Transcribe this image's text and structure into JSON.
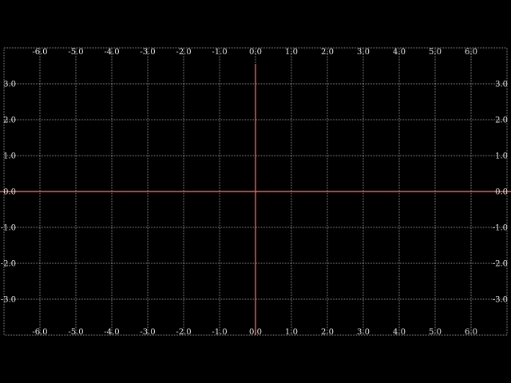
{
  "chart_data": {
    "type": "line",
    "title": "",
    "xlabel": "",
    "ylabel": "",
    "xlim": [
      -7.0,
      7.0
    ],
    "ylim": [
      -4.0,
      4.0
    ],
    "x_ticks": [
      "-6.0",
      "-5.0",
      "-4.0",
      "-3.0",
      "-2.0",
      "-1.0",
      "0.0",
      "1.0",
      "2.0",
      "3.0",
      "4.0",
      "5.0",
      "6.0"
    ],
    "x_tick_values": [
      -6,
      -5,
      -4,
      -3,
      -2,
      -1,
      0,
      1,
      2,
      3,
      4,
      5,
      6
    ],
    "y_ticks": [
      "3.0",
      "2.0",
      "1.0",
      "0.0",
      "-1.0",
      "-2.0",
      "-3.0"
    ],
    "y_tick_values": [
      3,
      2,
      1,
      0,
      -1,
      -2,
      -3
    ],
    "x_tick_positions": [
      "top",
      "bottom"
    ],
    "y_tick_positions": [
      "left",
      "right"
    ],
    "grid": true,
    "grid_style": "dotted",
    "axes_lines": [
      {
        "orientation": "horizontal",
        "at": 0
      },
      {
        "orientation": "vertical",
        "at": 0
      }
    ],
    "series": []
  },
  "colors": {
    "background": "#000000",
    "grid": "#8a8a8a",
    "axis_lines": "#ff5555",
    "tick_text": "#e6e6e6"
  }
}
